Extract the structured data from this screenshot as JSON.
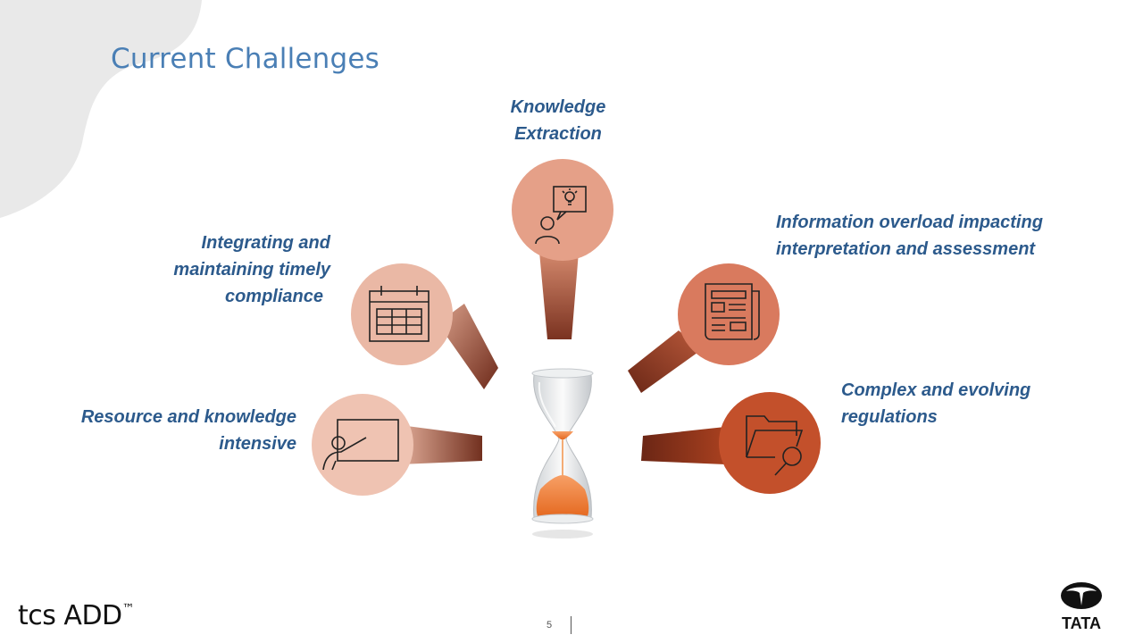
{
  "slide": {
    "title": "Current Challenges",
    "page_number": "5"
  },
  "challenges": {
    "top": {
      "lines": [
        "Knowledge",
        "Extraction"
      ],
      "icon": "person-idea-icon",
      "color": "#e59f86"
    },
    "left_upper": {
      "lines": [
        "Integrating and",
        "maintaining timely",
        "compliance"
      ],
      "icon": "calendar-icon",
      "color": "#ebb7a3"
    },
    "left_lower": {
      "lines": [
        "Resource and knowledge",
        "intensive"
      ],
      "icon": "presenter-board-icon",
      "color": "#f0c4b2"
    },
    "right_upper": {
      "lines": [
        "Information overload impacting",
        "interpretation and assessment"
      ],
      "icon": "newspaper-icon",
      "color": "#d8775b"
    },
    "right_lower": {
      "lines": [
        "Complex and evolving",
        "regulations"
      ],
      "icon": "folder-search-icon",
      "color": "#c4502a"
    }
  },
  "footer": {
    "logo_text": "tcs ADD",
    "logo_mark": "™",
    "brand": "TATA"
  }
}
